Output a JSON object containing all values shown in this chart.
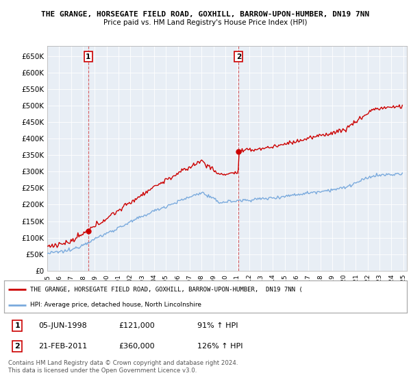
{
  "title1": "THE GRANGE, HORSEGATE FIELD ROAD, GOXHILL, BARROW-UPON-HUMBER, DN19 7NN",
  "title2": "Price paid vs. HM Land Registry's House Price Index (HPI)",
  "ylim": [
    0,
    680000
  ],
  "yticks": [
    0,
    50000,
    100000,
    150000,
    200000,
    250000,
    300000,
    350000,
    400000,
    450000,
    500000,
    550000,
    600000,
    650000
  ],
  "sale1_year": 1998,
  "sale1_month": 6,
  "sale1_price": 121000,
  "sale2_year": 2011,
  "sale2_month": 2,
  "sale2_price": 360000,
  "hpi_color": "#7aaadd",
  "price_color": "#cc0000",
  "plot_bg": "#e8eef5",
  "bg_color": "#ffffff",
  "grid_color": "#ffffff",
  "legend_line1": "THE GRANGE, HORSEGATE FIELD ROAD, GOXHILL, BARROW-UPON-HUMBER,  DN19 7NN (",
  "legend_line2": "HPI: Average price, detached house, North Lincolnshire",
  "table_row1": [
    "1",
    "05-JUN-1998",
    "£121,000",
    "91% ↑ HPI"
  ],
  "table_row2": [
    "2",
    "21-FEB-2011",
    "£360,000",
    "126% ↑ HPI"
  ],
  "footer": "Contains HM Land Registry data © Crown copyright and database right 2024.\nThis data is licensed under the Open Government Licence v3.0."
}
